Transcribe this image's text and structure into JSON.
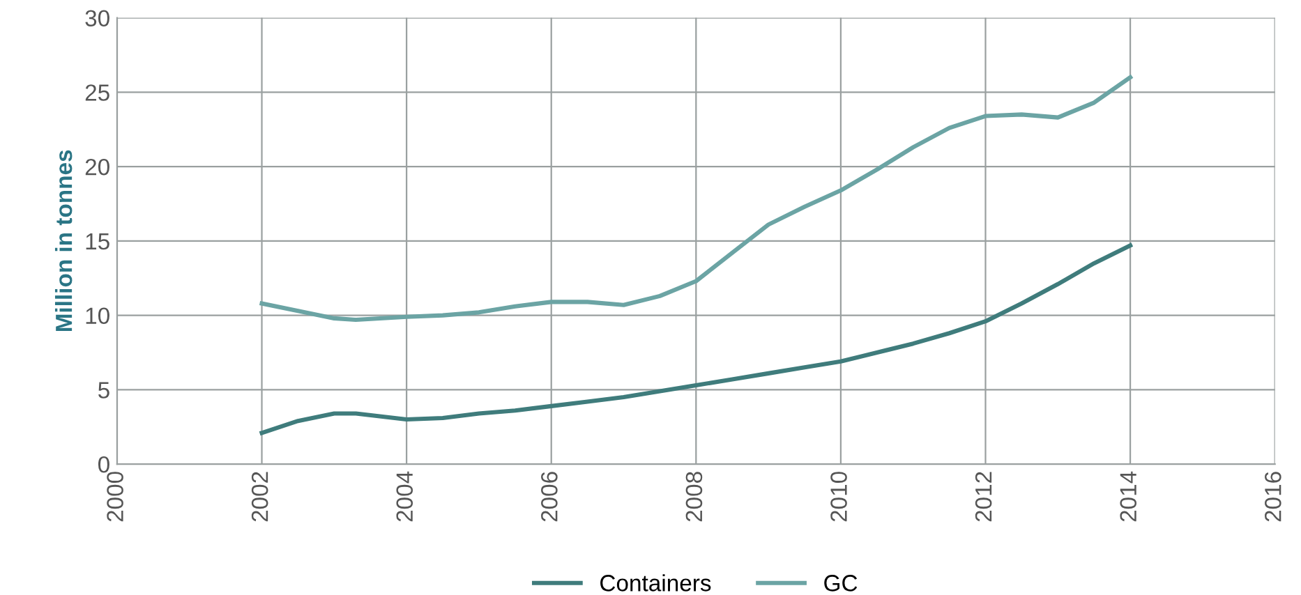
{
  "chart_data": {
    "type": "line",
    "ylabel": "Million in tonnes",
    "xlim": [
      2000,
      2016
    ],
    "xticks": [
      2000,
      2002,
      2004,
      2006,
      2008,
      2010,
      2012,
      2014,
      2016
    ],
    "ylim": [
      0,
      30
    ],
    "yticks": [
      0,
      5,
      10,
      15,
      20,
      25,
      30
    ],
    "grid": true,
    "legend": "bottom",
    "marker": "none",
    "line_style": "solid",
    "x": [
      2002,
      2002.5,
      2003,
      2003.3,
      2004,
      2004.5,
      2005,
      2005.5,
      2006,
      2006.5,
      2007,
      2007.5,
      2008,
      2008.5,
      2009,
      2009.5,
      2010,
      2010.5,
      2011,
      2011.5,
      2012,
      2012.5,
      2013,
      2013.5,
      2014
    ],
    "series": [
      {
        "name": "Containers",
        "color": "#3f7c7c",
        "values": [
          2.1,
          2.9,
          3.4,
          3.4,
          3.0,
          3.1,
          3.4,
          3.6,
          3.9,
          4.2,
          4.5,
          4.9,
          5.3,
          5.7,
          6.1,
          6.5,
          6.9,
          7.5,
          8.1,
          8.8,
          9.6,
          10.8,
          12.1,
          13.5,
          14.7
        ]
      },
      {
        "name": "GC",
        "color": "#6ba4a4",
        "values": [
          10.8,
          10.3,
          9.8,
          9.7,
          9.9,
          10.0,
          10.2,
          10.6,
          10.9,
          10.9,
          10.7,
          11.3,
          12.3,
          14.2,
          16.1,
          17.3,
          18.4,
          19.8,
          21.3,
          22.6,
          23.4,
          23.5,
          23.3,
          24.3,
          26.0
        ]
      }
    ]
  }
}
